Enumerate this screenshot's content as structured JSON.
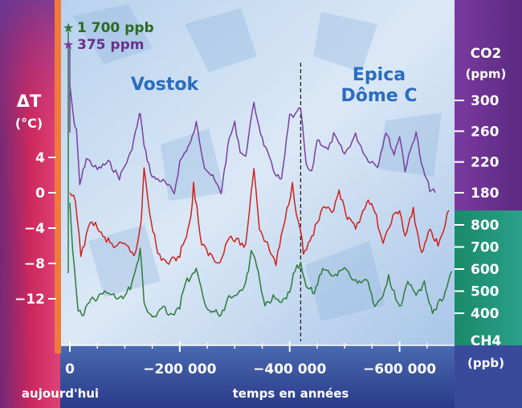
{
  "chart_data": {
    "type": "line",
    "title_left": "Vostok",
    "title_right": "Epica\nDôme C",
    "annot_ch4_max": "1 700 ppb",
    "annot_co2_max": "375 ppm",
    "xlabel": "temps en années",
    "x_origin_label": "aujourd'hui",
    "x_ticks": [
      0,
      -200000,
      -400000,
      -600000
    ],
    "x_tick_labels": [
      "0",
      "−200 000",
      "−400 000",
      "−600 000"
    ],
    "xlim": [
      0,
      -700000
    ],
    "divider_x": -420000,
    "temp_axis": {
      "label": "ΔT\n(°C)",
      "ticks": [
        4,
        0,
        -4,
        -8,
        -12
      ],
      "tick_labels": [
        "4",
        "0",
        "−4",
        "−8",
        "−12"
      ],
      "range": [
        -14,
        12
      ]
    },
    "co2_axis": {
      "label": "CO2\n(ppm)",
      "ticks": [
        300,
        260,
        220,
        180
      ],
      "range": [
        160,
        330
      ]
    },
    "ch4_axis": {
      "label": "CH4\n(ppb)",
      "ticks": [
        800,
        700,
        600,
        500,
        400
      ],
      "range": [
        300,
        850
      ]
    },
    "colors": {
      "co2": "#7a3fa0",
      "temp": "#d0201c",
      "ch4": "#2f7a3a",
      "title": "#2a6cc0",
      "star_ch4": "#2f7a3a",
      "star_co2": "#7a3fa0",
      "annot_ch4": "#2c6a1e",
      "annot_co2": "#6a2f8c"
    },
    "series": [
      {
        "name": "CO2",
        "axis": "co2",
        "x": [
          0,
          -8000,
          -12000,
          -18000,
          -30000,
          -50000,
          -70000,
          -90000,
          -110000,
          -125000,
          -128000,
          -135000,
          -150000,
          -170000,
          -190000,
          -200000,
          -215000,
          -220000,
          -230000,
          -245000,
          -260000,
          -275000,
          -290000,
          -300000,
          -310000,
          -320000,
          -325000,
          -335000,
          -350000,
          -370000,
          -385000,
          -400000,
          -410000,
          -420000,
          -430000,
          -440000,
          -450000,
          -470000,
          -480000,
          -500000,
          -520000,
          -540000,
          -560000,
          -575000,
          -590000,
          -600000,
          -610000,
          -630000,
          -640000,
          -655000,
          -665000
        ],
        "values": [
          375,
          270,
          260,
          190,
          225,
          210,
          220,
          200,
          230,
          275,
          285,
          240,
          200,
          195,
          180,
          220,
          240,
          245,
          270,
          215,
          200,
          180,
          250,
          270,
          235,
          225,
          255,
          295,
          250,
          210,
          195,
          280,
          280,
          290,
          215,
          205,
          250,
          235,
          255,
          230,
          255,
          225,
          215,
          260,
          230,
          255,
          210,
          260,
          215,
          185,
          180
        ]
      },
      {
        "name": "Température",
        "axis": "temp",
        "x": [
          0,
          -10000,
          -20000,
          -40000,
          -60000,
          -80000,
          -100000,
          -120000,
          -130000,
          -135000,
          -145000,
          -160000,
          -180000,
          -200000,
          -215000,
          -220000,
          -225000,
          -240000,
          -255000,
          -270000,
          -290000,
          -320000,
          -330000,
          -335000,
          -345000,
          -360000,
          -375000,
          -395000,
          -405000,
          -412000,
          -420000,
          -425000,
          -440000,
          -460000,
          -480000,
          -490000,
          -505000,
          -520000,
          -540000,
          -555000,
          -570000,
          -585000,
          -600000,
          -610000,
          -625000,
          -640000,
          -655000,
          -670000,
          -690000
        ],
        "values": [
          0,
          -1,
          -7,
          -3,
          -5,
          -6,
          -6,
          -7,
          -3,
          3,
          -2,
          -7,
          -8,
          -7,
          -4,
          -3,
          1,
          -6,
          -7,
          -8,
          -5,
          -6,
          0,
          3,
          -4,
          -6,
          -8,
          -2,
          1,
          -2,
          -4,
          -7,
          -5,
          -2,
          -2,
          0,
          -3,
          -4,
          -1,
          -2,
          -6,
          -3,
          -2,
          -5,
          -2,
          -7,
          -4,
          -6,
          -2
        ]
      },
      {
        "name": "CH4",
        "axis": "ch4",
        "x": [
          0,
          -5000,
          -15000,
          -22000,
          -35000,
          -50000,
          -70000,
          -90000,
          -110000,
          -125000,
          -128000,
          -135000,
          -150000,
          -170000,
          -190000,
          -200000,
          -210000,
          -220000,
          -230000,
          -245000,
          -260000,
          -275000,
          -290000,
          -310000,
          -320000,
          -325000,
          -330000,
          -340000,
          -355000,
          -370000,
          -385000,
          -400000,
          -410000,
          -420000,
          -430000,
          -445000,
          -460000,
          -480000,
          -500000,
          -520000,
          -540000,
          -555000,
          -570000,
          -580000,
          -600000,
          -615000,
          -630000,
          -645000,
          -660000,
          -680000,
          -695000
        ],
        "values": [
          1700,
          690,
          420,
          380,
          460,
          470,
          500,
          460,
          520,
          650,
          700,
          440,
          380,
          420,
          390,
          430,
          540,
          560,
          600,
          440,
          410,
          390,
          480,
          500,
          540,
          600,
          680,
          620,
          430,
          470,
          440,
          500,
          600,
          620,
          510,
          500,
          600,
          560,
          610,
          540,
          560,
          420,
          480,
          560,
          420,
          550,
          470,
          540,
          400,
          480,
          590
        ]
      }
    ]
  }
}
